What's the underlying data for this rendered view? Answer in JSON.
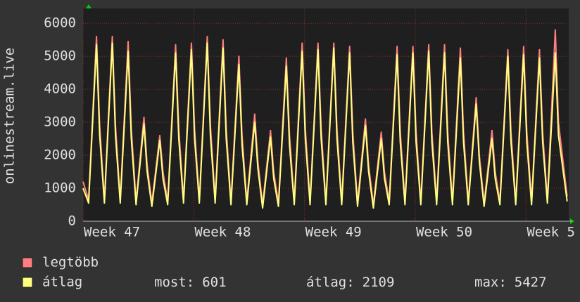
{
  "chart_data": {
    "type": "line",
    "ylabel": "onlinestream.live",
    "x": [
      0,
      0.35,
      0.85,
      1.05,
      1.35,
      1.85,
      2.05,
      2.35,
      2.85,
      3.05,
      3.35,
      3.85,
      4.05,
      4.35,
      4.85,
      5.05,
      5.35,
      5.85,
      6.05,
      6.35,
      6.85,
      7.05,
      7.35,
      7.85,
      8.05,
      8.35,
      8.85,
      9.05,
      9.35,
      9.85,
      10.05,
      10.35,
      10.85,
      11.05,
      11.35,
      11.85,
      12.05,
      12.35,
      12.85,
      13.05,
      13.35,
      13.85,
      14.05,
      14.35,
      14.85,
      15.05,
      15.35,
      15.85,
      16.05,
      16.35,
      16.85,
      17.05,
      17.35,
      17.85,
      18.05,
      18.35,
      18.85,
      19.05,
      19.35,
      19.85,
      20.05,
      20.35,
      20.85,
      21.05,
      21.35,
      21.85,
      22.05,
      22.35,
      22.85,
      23.05,
      23.35,
      23.85,
      24.05,
      24.35,
      24.85,
      25.05,
      25.35,
      25.85,
      26.05,
      26.35,
      26.85,
      27.05,
      27.35,
      27.85,
      28.05,
      28.35,
      28.85,
      29.05,
      29.35,
      29.85,
      30.05,
      30.6
    ],
    "series": [
      {
        "name": "legtöbb",
        "color": "#ff7f80",
        "values": [
          1200,
          650,
          5600,
          2900,
          650,
          5600,
          2900,
          650,
          5450,
          2800,
          600,
          3150,
          1700,
          550,
          2600,
          1500,
          600,
          5350,
          2800,
          650,
          5400,
          2800,
          650,
          5600,
          2900,
          650,
          5500,
          2800,
          600,
          5000,
          2600,
          600,
          3250,
          1800,
          500,
          2750,
          1500,
          550,
          4950,
          2600,
          600,
          5400,
          2800,
          600,
          5400,
          2800,
          600,
          5400,
          2800,
          600,
          5300,
          2700,
          550,
          3100,
          1700,
          500,
          2700,
          1500,
          600,
          5300,
          2700,
          600,
          5300,
          2700,
          600,
          5350,
          2700,
          600,
          5350,
          2700,
          600,
          5250,
          2700,
          600,
          3750,
          2000,
          550,
          2750,
          1500,
          600,
          5200,
          2700,
          600,
          5300,
          2700,
          600,
          5200,
          2700,
          650,
          5800,
          3000,
          750
        ]
      },
      {
        "name": "átlag",
        "color": "#ffff80",
        "values": [
          1000,
          550,
          5350,
          2600,
          550,
          5400,
          2600,
          550,
          5150,
          2500,
          500,
          2950,
          1500,
          450,
          2450,
          1300,
          500,
          5100,
          2500,
          550,
          5200,
          2500,
          550,
          5400,
          2600,
          550,
          5250,
          2500,
          500,
          4750,
          2300,
          500,
          3000,
          1600,
          400,
          2550,
          1300,
          450,
          4700,
          2300,
          500,
          5150,
          2500,
          500,
          5200,
          2500,
          500,
          5250,
          2500,
          500,
          5100,
          2400,
          450,
          2900,
          1500,
          400,
          2500,
          1300,
          500,
          5050,
          2400,
          500,
          5100,
          2400,
          500,
          5150,
          2400,
          500,
          5100,
          2400,
          500,
          4950,
          2400,
          500,
          3550,
          1800,
          450,
          2500,
          1300,
          500,
          5000,
          2400,
          500,
          5050,
          2400,
          500,
          4950,
          2400,
          550,
          5100,
          2600,
          601
        ]
      }
    ],
    "xlim": [
      0,
      30.7
    ],
    "xticks": [
      {
        "value": 0,
        "label": "Week 47"
      },
      {
        "value": 7,
        "label": "Week 48"
      },
      {
        "value": 14,
        "label": "Week 49"
      },
      {
        "value": 21,
        "label": "Week 50"
      },
      {
        "value": 28,
        "label": "Week 5"
      }
    ],
    "ylim": [
      0,
      6450
    ],
    "yticks": [
      0,
      1000,
      2000,
      3000,
      4000,
      5000,
      6000
    ],
    "grid": true,
    "stats": [
      {
        "label": "most:",
        "value": 601
      },
      {
        "label": "átlag:",
        "value": 2109
      },
      {
        "label": "max:",
        "value": 5427
      }
    ]
  }
}
